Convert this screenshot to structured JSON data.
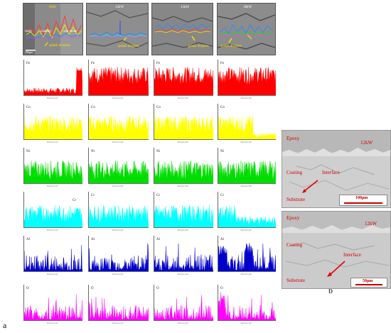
{
  "figure_labels": {
    "a": "a",
    "b": "b"
  },
  "sem_panels": [
    {
      "label": "9kW",
      "annotations": [
        "resin",
        "coating",
        "sub-strate",
        "splash droplets"
      ],
      "scale": "100µm"
    },
    {
      "label": "12kW",
      "annotations": [
        "splash droplets"
      ],
      "scale": ""
    },
    {
      "label": "15kW",
      "annotations": [
        "splash droplets"
      ],
      "scale": ""
    },
    {
      "label": "18kW",
      "annotations": [
        "splash droplets"
      ],
      "scale": ""
    }
  ],
  "elements": [
    {
      "symbol": "Fe",
      "color": "#ff0000"
    },
    {
      "symbol": "Co",
      "color": "#ffff00"
    },
    {
      "symbol": "Ni",
      "color": "#00dd00"
    },
    {
      "symbol": "Cr",
      "color": "#00ffff"
    },
    {
      "symbol": "Al",
      "color": "#0000cc"
    },
    {
      "symbol": "O",
      "color": "#ff00ff"
    }
  ],
  "xaxis_label": "Distance/μm",
  "panel_b": [
    {
      "epoxy": "Epoxy",
      "power": "12kW",
      "coating": "Coating",
      "interface": "Interface",
      "substrate": "Substrate",
      "scale": "100μm"
    },
    {
      "epoxy": "Epoxy",
      "power": "12kW",
      "coating": "Coating",
      "interface": "Interface",
      "substrate": "Substrate",
      "scale": "50μm"
    }
  ]
}
